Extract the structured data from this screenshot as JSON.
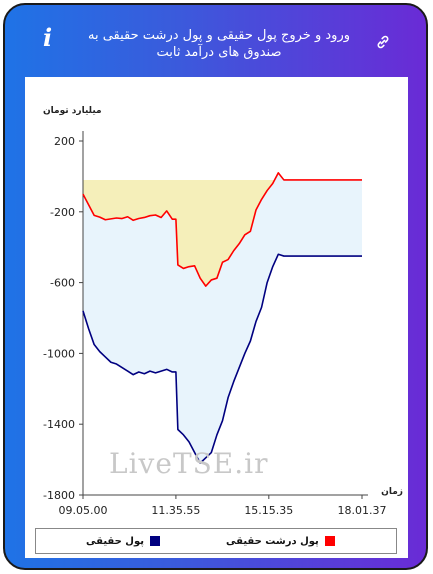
{
  "header": {
    "title": "ورود و خروج پول حقیقی و پول درشت حقیقی به صندوق های درآمد ثابت",
    "info_icon": "info-icon",
    "link_icon": "link-icon"
  },
  "watermark": "LiveTSE.ir",
  "chart_data": {
    "type": "line",
    "ylabel": "میلیارد تومان",
    "xlabel": "زمان",
    "ylim": [
      -1800,
      200
    ],
    "yticks": [
      200,
      -200,
      -600,
      -1000,
      -1400,
      -1800
    ],
    "ytick_labels": [
      "200",
      "-200",
      "-600",
      "-1000",
      "-1400",
      "-1800"
    ],
    "xticks": [
      0,
      0.333,
      0.666,
      1.0
    ],
    "xtick_labels": [
      "09.05.00",
      "11.35.55",
      "15.15.35",
      "18.01.37"
    ],
    "colors": {
      "red": "#ff0000",
      "blue": "#000080",
      "yellow_fill": "#f5efba",
      "blue_fill": "#e8f4fc"
    },
    "series": [
      {
        "name": "پول درشت حقیقی",
        "color": "#ff0000",
        "x": [
          0,
          0.02,
          0.04,
          0.06,
          0.08,
          0.1,
          0.12,
          0.14,
          0.16,
          0.18,
          0.2,
          0.22,
          0.24,
          0.26,
          0.28,
          0.3,
          0.32,
          0.333,
          0.34,
          0.36,
          0.38,
          0.4,
          0.42,
          0.44,
          0.46,
          0.48,
          0.5,
          0.52,
          0.54,
          0.56,
          0.58,
          0.6,
          0.62,
          0.64,
          0.66,
          0.68,
          0.7,
          0.72,
          0.74,
          0.76,
          1.0
        ],
        "y": [
          -100,
          -160,
          -220,
          -230,
          -245,
          -240,
          -235,
          -238,
          -228,
          -248,
          -238,
          -232,
          -222,
          -218,
          -232,
          -195,
          -242,
          -242,
          -500,
          -520,
          -510,
          -505,
          -575,
          -620,
          -585,
          -575,
          -485,
          -470,
          -420,
          -380,
          -330,
          -310,
          -190,
          -130,
          -80,
          -40,
          20,
          -20,
          -20,
          -20,
          -20
        ]
      },
      {
        "name": "پول حقیقی",
        "color": "#000080",
        "x": [
          0,
          0.02,
          0.04,
          0.06,
          0.08,
          0.1,
          0.12,
          0.14,
          0.16,
          0.18,
          0.2,
          0.22,
          0.24,
          0.26,
          0.28,
          0.3,
          0.32,
          0.333,
          0.34,
          0.36,
          0.38,
          0.4,
          0.42,
          0.44,
          0.46,
          0.48,
          0.5,
          0.52,
          0.54,
          0.56,
          0.58,
          0.6,
          0.62,
          0.64,
          0.66,
          0.68,
          0.7,
          0.72,
          0.74,
          0.76,
          1.0
        ],
        "y": [
          -760,
          -860,
          -950,
          -990,
          -1020,
          -1050,
          -1060,
          -1080,
          -1100,
          -1120,
          -1105,
          -1115,
          -1100,
          -1110,
          -1100,
          -1090,
          -1105,
          -1105,
          -1430,
          -1460,
          -1500,
          -1560,
          -1620,
          -1590,
          -1560,
          -1460,
          -1380,
          -1250,
          -1160,
          -1080,
          -1000,
          -930,
          -820,
          -740,
          -600,
          -510,
          -440,
          -450,
          -450,
          -450,
          -450
        ]
      }
    ],
    "legend": "bottom"
  }
}
